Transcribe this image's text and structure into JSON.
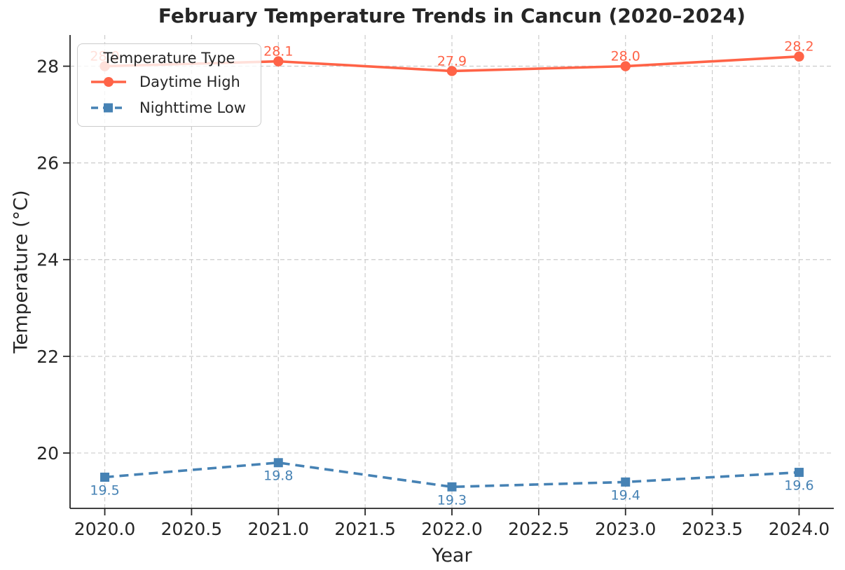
{
  "figure": {
    "title": "February Temperature Trends in Cancun (2020–2024)",
    "xlabel": "Year",
    "ylabel": "Temperature (°C)"
  },
  "legend": {
    "title": "Temperature Type",
    "position": "upper left",
    "entries": [
      "Daytime High",
      "Nighttime Low"
    ]
  },
  "colors": {
    "daytime_high": "#FF6347",
    "nighttime_low": "#4682B4",
    "grid": "#cccccc",
    "axis": "#262626",
    "background": "#ffffff"
  },
  "chart_data": {
    "type": "line",
    "title": "February Temperature Trends in Cancun (2020–2024)",
    "xlabel": "Year",
    "ylabel": "Temperature (°C)",
    "x": [
      2020,
      2021,
      2022,
      2023,
      2024
    ],
    "series": [
      {
        "name": "Daytime High",
        "values": [
          28.0,
          28.1,
          27.9,
          28.0,
          28.2
        ],
        "point_labels": [
          "28.0",
          "28.1",
          "27.9",
          "28.0",
          "28.2"
        ],
        "color": "#FF6347",
        "linestyle": "solid",
        "marker": "circle",
        "label_position": "above"
      },
      {
        "name": "Nighttime Low",
        "values": [
          19.5,
          19.8,
          19.3,
          19.4,
          19.6
        ],
        "point_labels": [
          "19.5",
          "19.8",
          "19.3",
          "19.4",
          "19.6"
        ],
        "color": "#4682B4",
        "linestyle": "dashed",
        "marker": "square",
        "label_position": "below"
      }
    ],
    "xlim": [
      2019.8,
      2024.2
    ],
    "ylim": [
      18.855,
      28.645
    ],
    "xticks": [
      2020.0,
      2020.5,
      2021.0,
      2021.5,
      2022.0,
      2022.5,
      2023.0,
      2023.5,
      2024.0
    ],
    "xtick_labels": [
      "2020.0",
      "2020.5",
      "2021.0",
      "2021.5",
      "2022.0",
      "2022.5",
      "2023.0",
      "2023.5",
      "2024.0"
    ],
    "yticks": [
      20,
      22,
      24,
      26,
      28
    ],
    "ytick_labels": [
      "20",
      "22",
      "24",
      "26",
      "28"
    ],
    "grid": true,
    "grid_style": "dashed",
    "legend_title": "Temperature Type",
    "legend_position": "upper left"
  }
}
